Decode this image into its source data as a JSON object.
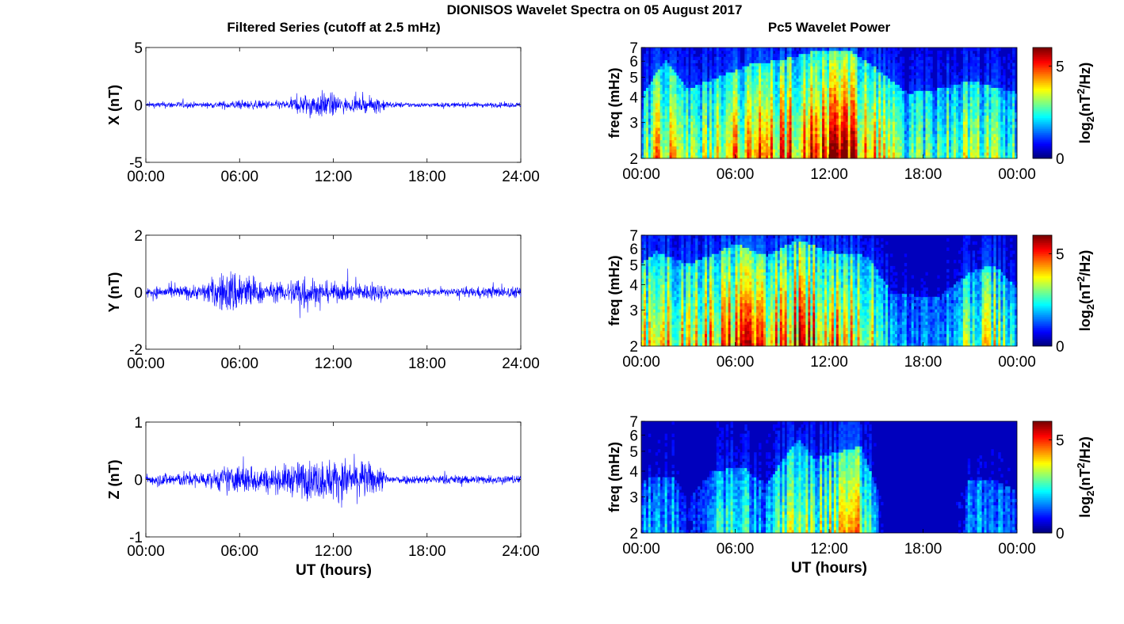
{
  "figure": {
    "title": "DIONISOS Wavelet Spectra on 05 August 2017",
    "left_column_title": "Filtered Series (cutoff at 2.5 mHz)",
    "right_column_title": "Pc5 Wavelet Power",
    "x_label": "UT (hours)"
  },
  "chart_data": [
    {
      "type": "line",
      "name": "X filtered series",
      "ylabel": "X (nT)",
      "ylim": [
        -5,
        5
      ],
      "yticks": [
        "5",
        "0",
        "-5"
      ],
      "xlim_hours": [
        0,
        24
      ],
      "xticks": [
        "00:00",
        "06:00",
        "12:00",
        "18:00",
        "24:00"
      ],
      "series_color": "#0000ff",
      "amplitude_envelope_nT": [
        {
          "t": 0,
          "amp": 0.35
        },
        {
          "t": 1.5,
          "amp": 0.45
        },
        {
          "t": 4,
          "amp": 0.35
        },
        {
          "t": 5.5,
          "amp": 0.6
        },
        {
          "t": 7,
          "amp": 0.55
        },
        {
          "t": 9,
          "amp": 0.6
        },
        {
          "t": 10,
          "amp": 1.4
        },
        {
          "t": 11.5,
          "amp": 1.8
        },
        {
          "t": 13,
          "amp": 0.8
        },
        {
          "t": 14,
          "amp": 0.9
        },
        {
          "t": 15,
          "amp": 1.1
        },
        {
          "t": 15.6,
          "amp": 0.4
        },
        {
          "t": 18,
          "amp": 0.3
        },
        {
          "t": 24,
          "amp": 0.35
        }
      ]
    },
    {
      "type": "line",
      "name": "Y filtered series",
      "ylabel": "Y (nT)",
      "ylim": [
        -2,
        2
      ],
      "yticks": [
        "2",
        "0",
        "-2"
      ],
      "xlim_hours": [
        0,
        24
      ],
      "xticks": [
        "00:00",
        "06:00",
        "12:00",
        "18:00",
        "24:00"
      ],
      "series_color": "#0000ff",
      "amplitude_envelope_nT": [
        {
          "t": 0,
          "amp": 0.3
        },
        {
          "t": 2,
          "amp": 0.35
        },
        {
          "t": 3.5,
          "amp": 0.4
        },
        {
          "t": 5,
          "amp": 1.1
        },
        {
          "t": 6,
          "amp": 1.3
        },
        {
          "t": 7.5,
          "amp": 0.5
        },
        {
          "t": 9,
          "amp": 0.5
        },
        {
          "t": 10,
          "amp": 1.2
        },
        {
          "t": 11,
          "amp": 0.6
        },
        {
          "t": 13,
          "amp": 0.45
        },
        {
          "t": 15,
          "amp": 0.5
        },
        {
          "t": 16,
          "amp": 0.2
        },
        {
          "t": 19,
          "amp": 0.2
        },
        {
          "t": 22,
          "amp": 0.3
        },
        {
          "t": 24,
          "amp": 0.3
        }
      ]
    },
    {
      "type": "line",
      "name": "Z filtered series",
      "ylabel": "Z (nT)",
      "ylim": [
        -1,
        1
      ],
      "yticks": [
        "1",
        "0",
        "-1"
      ],
      "xlim_hours": [
        0,
        24
      ],
      "xticks": [
        "00:00",
        "06:00",
        "12:00",
        "18:00",
        "24:00"
      ],
      "series_color": "#0000ff",
      "amplitude_envelope_nT": [
        {
          "t": 0,
          "amp": 0.15
        },
        {
          "t": 2,
          "amp": 0.2
        },
        {
          "t": 4,
          "amp": 0.2
        },
        {
          "t": 5,
          "amp": 0.35
        },
        {
          "t": 6.5,
          "amp": 0.4
        },
        {
          "t": 8,
          "amp": 0.3
        },
        {
          "t": 10,
          "amp": 0.5
        },
        {
          "t": 12,
          "amp": 0.55
        },
        {
          "t": 14,
          "amp": 0.5
        },
        {
          "t": 15,
          "amp": 0.35
        },
        {
          "t": 15.6,
          "amp": 0.12
        },
        {
          "t": 24,
          "amp": 0.12
        }
      ]
    },
    {
      "type": "heatmap",
      "name": "X wavelet power",
      "ylabel": "freq (mHz)",
      "ylim_mHz": [
        2,
        7
      ],
      "y_scale": "log",
      "yticks": [
        "2",
        "3",
        "4",
        "5",
        "6",
        "7"
      ],
      "xticks": [
        "00:00",
        "06:00",
        "12:00",
        "18:00",
        "00:00"
      ],
      "colorbar": {
        "label": "log2(nT^2/Hz)",
        "min": 0,
        "max": 6,
        "ticks": [
          "0",
          "5"
        ],
        "colormap": "jet"
      },
      "activity_envelope": [
        {
          "t": 0,
          "level": 0.45
        },
        {
          "t": 1.5,
          "level": 0.9
        },
        {
          "t": 3,
          "level": 0.55
        },
        {
          "t": 5,
          "level": 0.7
        },
        {
          "t": 7,
          "level": 0.85
        },
        {
          "t": 9,
          "level": 0.9
        },
        {
          "t": 11,
          "level": 1.0
        },
        {
          "t": 13.5,
          "level": 1.0
        },
        {
          "t": 15,
          "level": 0.8
        },
        {
          "t": 17,
          "level": 0.5
        },
        {
          "t": 19,
          "level": 0.55
        },
        {
          "t": 21,
          "level": 0.65
        },
        {
          "t": 24,
          "level": 0.5
        }
      ]
    },
    {
      "type": "heatmap",
      "name": "Y wavelet power",
      "ylabel": "freq (mHz)",
      "ylim_mHz": [
        2,
        7
      ],
      "y_scale": "log",
      "yticks": [
        "2",
        "3",
        "4",
        "5",
        "6",
        "7"
      ],
      "xticks": [
        "00:00",
        "06:00",
        "12:00",
        "18:00",
        "00:00"
      ],
      "colorbar": {
        "label": "log2(nT^2/Hz)",
        "min": 0,
        "max": 6,
        "ticks": [
          "0",
          "5"
        ],
        "colormap": "jet"
      },
      "activity_envelope": [
        {
          "t": 0,
          "level": 0.7
        },
        {
          "t": 1,
          "level": 0.85
        },
        {
          "t": 3,
          "level": 0.7
        },
        {
          "t": 5,
          "level": 0.85
        },
        {
          "t": 6,
          "level": 0.95
        },
        {
          "t": 8,
          "level": 0.8
        },
        {
          "t": 10,
          "level": 1.0
        },
        {
          "t": 12,
          "level": 0.85
        },
        {
          "t": 14.5,
          "level": 0.8
        },
        {
          "t": 16,
          "level": 0.35
        },
        {
          "t": 19,
          "level": 0.3
        },
        {
          "t": 21,
          "level": 0.6
        },
        {
          "t": 22.5,
          "level": 0.7
        },
        {
          "t": 24,
          "level": 0.4
        }
      ]
    },
    {
      "type": "heatmap",
      "name": "Z wavelet power",
      "ylabel": "freq (mHz)",
      "ylim_mHz": [
        2,
        7
      ],
      "y_scale": "log",
      "yticks": [
        "2",
        "3",
        "4",
        "5",
        "6",
        "7"
      ],
      "xticks": [
        "00:00",
        "06:00",
        "12:00",
        "18:00",
        "00:00"
      ],
      "colorbar": {
        "label": "log2(nT^2/Hz)",
        "min": 0,
        "max": 6,
        "ticks": [
          "0",
          "5"
        ],
        "colormap": "jet"
      },
      "activity_envelope": [
        {
          "t": 0,
          "level": 0.35
        },
        {
          "t": 2,
          "level": 0.4
        },
        {
          "t": 3,
          "level": 0.1
        },
        {
          "t": 4.5,
          "level": 0.45
        },
        {
          "t": 6.5,
          "level": 0.5
        },
        {
          "t": 8,
          "level": 0.3
        },
        {
          "t": 10,
          "level": 0.85
        },
        {
          "t": 11,
          "level": 0.6
        },
        {
          "t": 14,
          "level": 0.75
        },
        {
          "t": 15.5,
          "level": 0.05
        },
        {
          "t": 20,
          "level": 0.05
        },
        {
          "t": 21,
          "level": 0.35
        },
        {
          "t": 22.5,
          "level": 0.35
        },
        {
          "t": 24,
          "level": 0.2
        }
      ]
    }
  ]
}
